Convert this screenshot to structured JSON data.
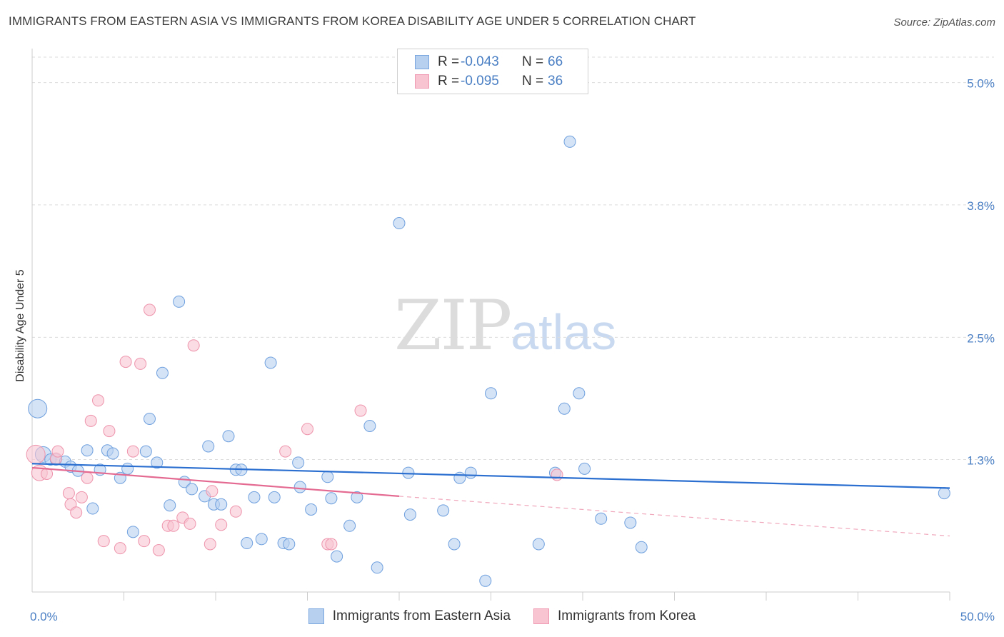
{
  "title": "IMMIGRANTS FROM EASTERN ASIA VS IMMIGRANTS FROM KOREA DISABILITY AGE UNDER 5 CORRELATION CHART",
  "source": "Source: ZipAtlas.com",
  "watermark": {
    "zip": "ZIP",
    "atlas": "atlas"
  },
  "legend": {
    "rows": [
      {
        "r_label": "R =",
        "r_value": "-0.043",
        "n_label": "N =",
        "n_value": "66",
        "fill": "#b8d0f0",
        "stroke": "#7aa6e0"
      },
      {
        "r_label": "R =",
        "r_value": "-0.095",
        "n_label": "N =",
        "n_value": "36",
        "fill": "#f8c4d2",
        "stroke": "#ef9ab2"
      }
    ]
  },
  "bottom_legend": [
    {
      "label": "Immigrants from Eastern Asia",
      "fill": "#b8d0f0",
      "stroke": "#7aa6e0"
    },
    {
      "label": "Immigrants from Korea",
      "fill": "#f8c4d2",
      "stroke": "#ef9ab2"
    }
  ],
  "chart_data": {
    "type": "scatter",
    "title": "IMMIGRANTS FROM EASTERN ASIA VS IMMIGRANTS FROM KOREA DISABILITY AGE UNDER 5 CORRELATION CHART",
    "xlabel": "",
    "ylabel": "Disability Age Under 5",
    "xlim": [
      0,
      50
    ],
    "ylim": [
      0,
      5.25
    ],
    "x_tick_labels": [
      {
        "value": 0,
        "label": "0.0%"
      },
      {
        "value": 50,
        "label": "50.0%"
      }
    ],
    "x_minor_ticks": [
      5,
      10,
      15,
      20,
      25,
      30,
      35,
      40,
      45,
      50
    ],
    "y_ticks": [
      {
        "value": 1.3,
        "label": "1.3%"
      },
      {
        "value": 2.5,
        "label": "2.5%"
      },
      {
        "value": 3.8,
        "label": "3.8%"
      },
      {
        "value": 5.0,
        "label": "5.0%"
      }
    ],
    "grid": "horizontal dashed",
    "series": [
      {
        "name": "Immigrants from Eastern Asia",
        "color": "#6fa0de",
        "fill": "#b8d0f0",
        "trend": {
          "x": [
            0,
            50
          ],
          "y": [
            1.26,
            1.02
          ],
          "color": "#2b6fd0"
        },
        "points": [
          [
            0.3,
            1.8,
            "L"
          ],
          [
            0.6,
            1.35,
            "M"
          ],
          [
            1.0,
            1.3
          ],
          [
            1.3,
            1.3
          ],
          [
            1.8,
            1.28
          ],
          [
            2.1,
            1.23
          ],
          [
            2.5,
            1.19
          ],
          [
            3.0,
            1.39
          ],
          [
            3.3,
            0.82
          ],
          [
            3.7,
            1.2
          ],
          [
            4.1,
            1.39
          ],
          [
            4.4,
            1.36
          ],
          [
            4.8,
            1.12
          ],
          [
            5.2,
            1.21
          ],
          [
            5.5,
            0.59
          ],
          [
            6.2,
            1.38
          ],
          [
            6.4,
            1.7
          ],
          [
            6.8,
            1.27
          ],
          [
            7.1,
            2.15
          ],
          [
            7.5,
            0.85
          ],
          [
            8.0,
            2.85
          ],
          [
            8.3,
            1.08
          ],
          [
            8.7,
            1.01
          ],
          [
            9.4,
            0.94
          ],
          [
            9.6,
            1.43
          ],
          [
            9.9,
            0.86
          ],
          [
            10.3,
            0.86
          ],
          [
            10.7,
            1.53
          ],
          [
            11.1,
            1.2
          ],
          [
            11.4,
            1.2
          ],
          [
            11.7,
            0.48
          ],
          [
            12.1,
            0.93
          ],
          [
            12.5,
            0.52
          ],
          [
            13.0,
            2.25
          ],
          [
            13.2,
            0.93
          ],
          [
            13.7,
            0.48
          ],
          [
            14.0,
            0.47
          ],
          [
            14.5,
            1.27
          ],
          [
            14.6,
            1.03
          ],
          [
            15.2,
            0.81
          ],
          [
            16.1,
            1.13
          ],
          [
            16.3,
            0.92
          ],
          [
            16.6,
            0.35
          ],
          [
            17.3,
            0.65
          ],
          [
            17.7,
            0.93
          ],
          [
            18.4,
            1.63
          ],
          [
            18.8,
            0.24
          ],
          [
            20.0,
            3.62
          ],
          [
            20.5,
            1.17
          ],
          [
            20.6,
            0.76
          ],
          [
            22.4,
            0.8
          ],
          [
            23.0,
            0.47
          ],
          [
            23.3,
            1.12
          ],
          [
            23.9,
            1.17
          ],
          [
            24.7,
            0.11
          ],
          [
            25.0,
            1.95
          ],
          [
            27.6,
            0.47
          ],
          [
            28.5,
            1.17
          ],
          [
            29.0,
            1.8
          ],
          [
            29.3,
            4.42
          ],
          [
            29.8,
            1.95
          ],
          [
            30.1,
            1.21
          ],
          [
            31.0,
            0.72
          ],
          [
            32.6,
            0.68
          ],
          [
            33.2,
            0.44
          ],
          [
            49.7,
            0.97
          ]
        ]
      },
      {
        "name": "Immigrants from Korea",
        "color": "#ee94ac",
        "fill": "#f8c4d2",
        "trend": {
          "x": [
            0,
            20
          ],
          "y": [
            1.22,
            0.94
          ],
          "color": "#e46a92"
        },
        "trend_dashed": {
          "x": [
            20,
            50
          ],
          "y": [
            0.94,
            0.55
          ],
          "color": "#f0a7bc"
        },
        "points": [
          [
            0.2,
            1.35,
            "L"
          ],
          [
            0.4,
            1.17,
            "M"
          ],
          [
            0.8,
            1.16
          ],
          [
            1.3,
            1.31
          ],
          [
            1.4,
            1.38
          ],
          [
            2.0,
            0.97
          ],
          [
            2.1,
            0.86
          ],
          [
            2.4,
            0.78
          ],
          [
            2.7,
            0.93
          ],
          [
            3.0,
            1.12
          ],
          [
            3.2,
            1.68
          ],
          [
            3.6,
            1.88
          ],
          [
            3.9,
            0.5
          ],
          [
            4.2,
            1.58
          ],
          [
            4.8,
            0.43
          ],
          [
            5.1,
            2.26
          ],
          [
            5.5,
            1.38
          ],
          [
            5.9,
            2.24
          ],
          [
            6.1,
            0.5
          ],
          [
            6.4,
            2.77
          ],
          [
            6.9,
            0.41
          ],
          [
            7.4,
            0.65
          ],
          [
            7.7,
            0.65
          ],
          [
            8.2,
            0.73
          ],
          [
            8.6,
            0.67
          ],
          [
            8.8,
            2.42
          ],
          [
            9.7,
            0.47
          ],
          [
            9.8,
            0.99
          ],
          [
            10.3,
            0.66
          ],
          [
            11.1,
            0.79
          ],
          [
            13.8,
            1.38
          ],
          [
            15.0,
            1.6
          ],
          [
            16.1,
            0.47
          ],
          [
            16.3,
            0.47
          ],
          [
            17.9,
            1.78
          ],
          [
            28.6,
            1.15
          ]
        ]
      }
    ]
  }
}
